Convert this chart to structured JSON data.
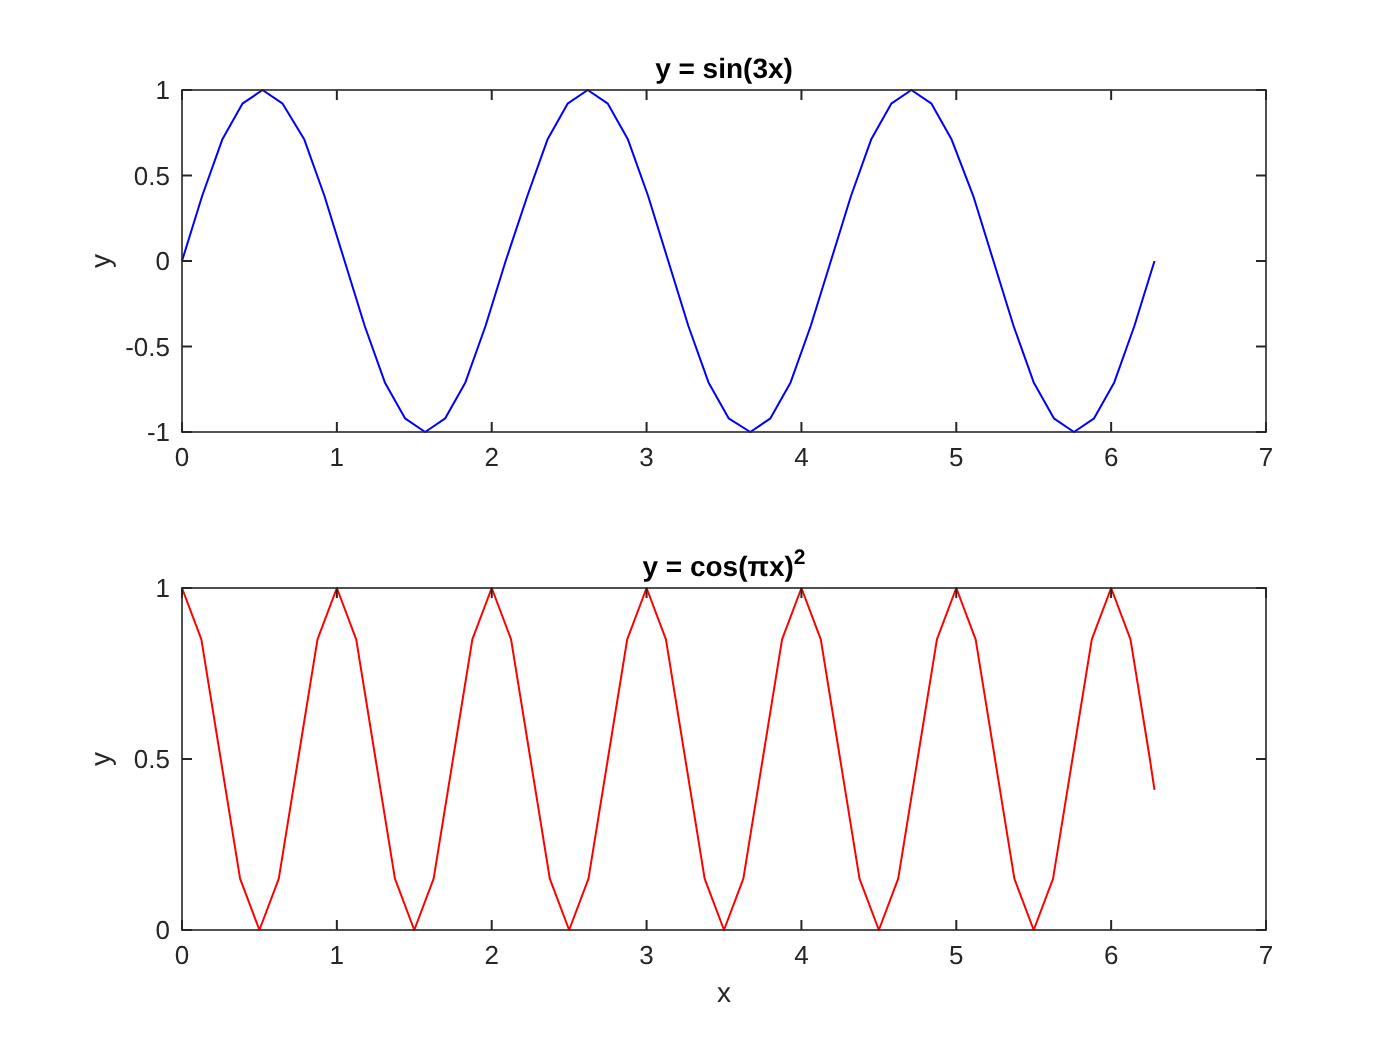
{
  "chart_data": [
    {
      "type": "line",
      "title": "y = sin(3x)",
      "ylabel": "y",
      "xlim": [
        0,
        7
      ],
      "ylim": [
        -1,
        1
      ],
      "xticks": [
        0,
        1,
        2,
        3,
        4,
        5,
        6,
        7
      ],
      "yticks": [
        -1,
        -0.5,
        0,
        0.5,
        1
      ],
      "x": [
        0,
        0.13,
        0.26,
        0.39,
        0.52,
        0.65,
        0.79,
        0.92,
        1.05,
        1.18,
        1.31,
        1.44,
        1.57,
        1.7,
        1.83,
        1.96,
        2.09,
        2.23,
        2.36,
        2.49,
        2.62,
        2.75,
        2.88,
        3.01,
        3.14,
        3.27,
        3.4,
        3.53,
        3.67,
        3.8,
        3.93,
        4.06,
        4.19,
        4.32,
        4.45,
        4.58,
        4.71,
        4.84,
        4.97,
        5.11,
        5.24,
        5.37,
        5.5,
        5.63,
        5.76,
        5.89,
        6.02,
        6.15,
        6.28
      ],
      "series": [
        {
          "color": "#0000ff",
          "values": [
            0,
            0.38,
            0.71,
            0.92,
            1,
            0.92,
            0.71,
            0.38,
            0,
            -0.38,
            -0.71,
            -0.92,
            -1,
            -0.92,
            -0.71,
            -0.38,
            0,
            0.38,
            0.71,
            0.92,
            1,
            0.92,
            0.71,
            0.38,
            0,
            -0.38,
            -0.71,
            -0.92,
            -1,
            -0.92,
            -0.71,
            -0.38,
            0,
            0.38,
            0.71,
            0.92,
            1,
            0.92,
            0.71,
            0.38,
            0,
            -0.38,
            -0.71,
            -0.92,
            -1,
            -0.92,
            -0.71,
            -0.38,
            0
          ]
        }
      ]
    },
    {
      "type": "line",
      "title": "y = cos(πx)$^{2}$",
      "xlabel": "x",
      "ylabel": "y",
      "xlim": [
        0,
        7
      ],
      "ylim": [
        0,
        1
      ],
      "xticks": [
        0,
        1,
        2,
        3,
        4,
        5,
        6,
        7
      ],
      "yticks": [
        0,
        0.5,
        1
      ],
      "x": [
        0,
        0.125,
        0.25,
        0.375,
        0.5,
        0.625,
        0.75,
        0.875,
        1,
        1.125,
        1.25,
        1.375,
        1.5,
        1.625,
        1.75,
        1.875,
        2,
        2.125,
        2.25,
        2.375,
        2.5,
        2.625,
        2.75,
        2.875,
        3,
        3.125,
        3.25,
        3.375,
        3.5,
        3.625,
        3.75,
        3.875,
        4,
        4.125,
        4.25,
        4.375,
        4.5,
        4.625,
        4.75,
        4.875,
        5,
        5.125,
        5.25,
        5.375,
        5.5,
        5.625,
        5.75,
        5.875,
        6,
        6.125,
        6.25,
        6.28
      ],
      "series": [
        {
          "color": "#ff0000",
          "values": [
            1,
            0.85,
            0.5,
            0.15,
            0,
            0.15,
            0.5,
            0.85,
            1,
            0.85,
            0.5,
            0.15,
            0,
            0.15,
            0.5,
            0.85,
            1,
            0.85,
            0.5,
            0.15,
            0,
            0.15,
            0.5,
            0.85,
            1,
            0.85,
            0.5,
            0.15,
            0,
            0.15,
            0.5,
            0.85,
            1,
            0.85,
            0.5,
            0.15,
            0,
            0.15,
            0.5,
            0.85,
            1,
            0.85,
            0.5,
            0.15,
            0,
            0.15,
            0.5,
            0.85,
            1,
            0.85,
            0.5,
            0.41
          ]
        }
      ]
    }
  ]
}
